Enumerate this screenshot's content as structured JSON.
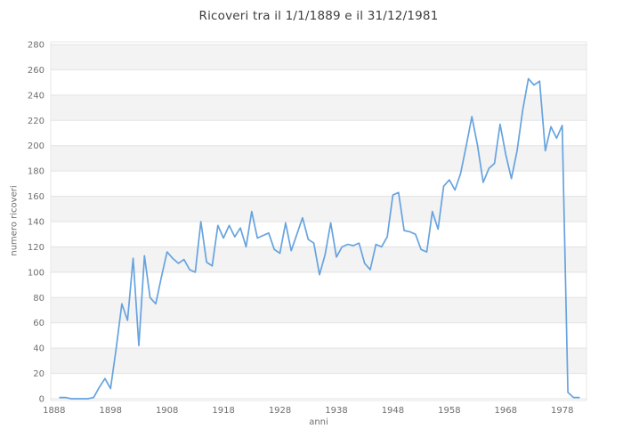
{
  "page": {
    "title": "Ricoveri tra il 1/1/1889 e il 31/12/1981"
  },
  "chart_data": {
    "type": "line",
    "title": "Ricoveri tra il 1/1/1889 e il 31/12/1981",
    "xlabel": "anni",
    "ylabel": "numero ricoveri",
    "legend": "none",
    "grid": "horizontal-with-alternating-bands",
    "ylim": [
      0,
      280
    ],
    "y_tick_step": 20,
    "x_ticks": [
      1888,
      1898,
      1908,
      1918,
      1928,
      1938,
      1948,
      1958,
      1968,
      1978
    ],
    "x_range_displayed": [
      1887.4,
      1982.3
    ],
    "series": [
      {
        "name": "ricoveri",
        "x_start": 1889,
        "x_step": 1,
        "x_end": 1981,
        "values": [
          1,
          1,
          0,
          0,
          0,
          0,
          1,
          9,
          16,
          8,
          40,
          75,
          62,
          111,
          42,
          113,
          80,
          75,
          96,
          116,
          111,
          107,
          110,
          102,
          100,
          140,
          108,
          105,
          137,
          127,
          137,
          128,
          135,
          120,
          148,
          127,
          129,
          131,
          118,
          115,
          139,
          117,
          130,
          143,
          126,
          123,
          98,
          114,
          139,
          112,
          120,
          122,
          121,
          123,
          107,
          102,
          122,
          120,
          128,
          161,
          163,
          133,
          132,
          130,
          118,
          116,
          148,
          134,
          168,
          173,
          165,
          178,
          200,
          223,
          200,
          171,
          182,
          186,
          217,
          193,
          174,
          196,
          228,
          253,
          248,
          251,
          196,
          215,
          206,
          216,
          5,
          1,
          1
        ]
      }
    ],
    "colors": {
      "line": "#66a3df",
      "band": "#f3f3f3",
      "gridline": "#e3e3e3",
      "plot_border": "#e7e7e7",
      "tick_text": "#6f6f6f",
      "title_text": "#3d3d3d",
      "background": "#ffffff"
    }
  }
}
